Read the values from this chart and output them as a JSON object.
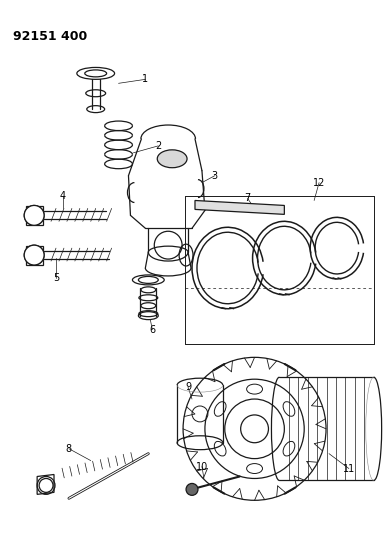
{
  "title": "92151 400",
  "background_color": "#ffffff",
  "line_color": "#1a1a1a",
  "figsize": [
    3.88,
    5.33
  ],
  "dpi": 100
}
